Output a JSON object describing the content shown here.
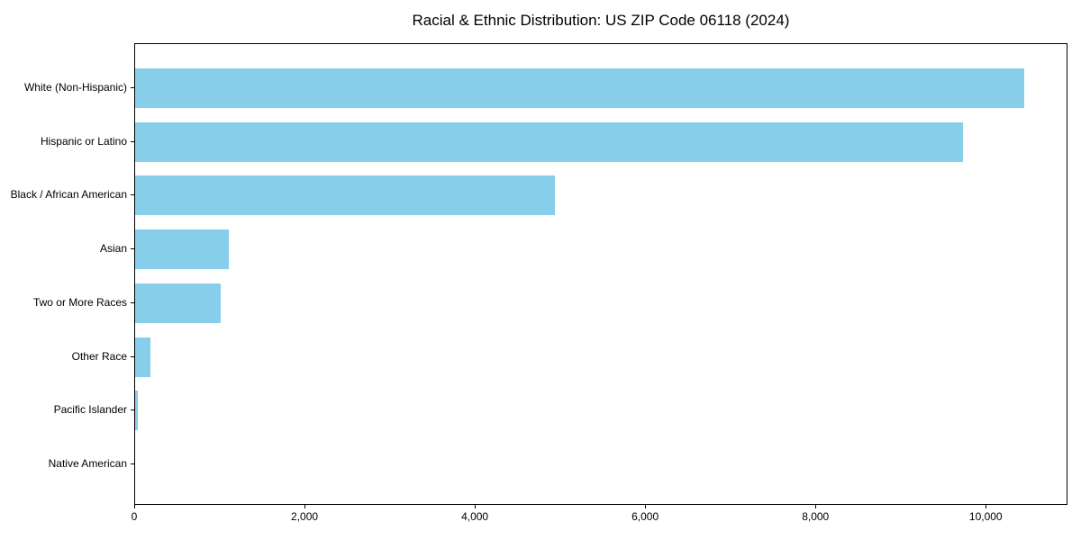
{
  "chart_data": {
    "type": "bar",
    "orientation": "horizontal",
    "title": "Racial & Ethnic Distribution: US ZIP Code 06118 (2024)",
    "categories": [
      "White (Non-Hispanic)",
      "Hispanic or Latino",
      "Black / African American",
      "Asian",
      "Two or More Races",
      "Other Race",
      "Pacific Islander",
      "Native American"
    ],
    "values": [
      10440,
      9720,
      4930,
      1100,
      1000,
      180,
      30,
      0
    ],
    "xlabel": "",
    "ylabel": "",
    "xlim": [
      0,
      10960
    ],
    "x_ticks": [
      0,
      2000,
      4000,
      6000,
      8000,
      10000
    ],
    "x_tick_labels": [
      "0",
      "2,000",
      "4,000",
      "6,000",
      "8,000",
      "10,000"
    ],
    "bar_color": "#87CEEB",
    "background_color": "#ffffff",
    "spine_color": "#000000",
    "text_color": "#000000",
    "grid": false,
    "legend_position": "none"
  }
}
